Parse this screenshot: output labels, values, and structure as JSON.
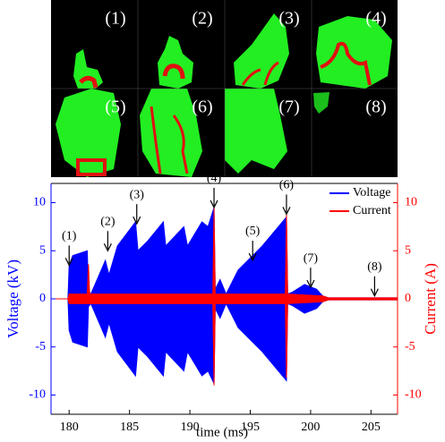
{
  "chart_data": {
    "type": "band",
    "image_panels": {
      "labels": [
        "(1)",
        "(2)",
        "(3)",
        "(4)",
        "(5)",
        "(6)",
        "(7)",
        "(8)"
      ]
    },
    "xlabel": "time (ms)",
    "ylabel": "Voltage (kV)",
    "y2label": "Current (A)",
    "xlim": [
      178.5,
      207.2
    ],
    "xticks": [
      180,
      185,
      190,
      195,
      200,
      205
    ],
    "ylim": [
      -12,
      12
    ],
    "yticks": [
      -10,
      -5,
      0,
      5,
      10
    ],
    "y2lim": [
      -12,
      12
    ],
    "y2ticks": [
      -10,
      -5,
      0,
      5,
      10
    ],
    "legend": "upper-right",
    "series": [
      {
        "name": "Voltage",
        "color": "#0000ff",
        "x": [
          178.5,
          179.9,
          180.0,
          180.3,
          181.5,
          181.6,
          181.8,
          183.0,
          183.3,
          184.0,
          185.5,
          185.7,
          186.5,
          187.8,
          188.0,
          189.5,
          189.8,
          191.0,
          191.5,
          192.0,
          192.1,
          192.5,
          193.0,
          194.0,
          196.0,
          197.0,
          198.0,
          198.1,
          198.5,
          199.5,
          200.5,
          201.0,
          201.5,
          207.2
        ],
        "values": [
          0,
          0,
          3.5,
          4.5,
          5.0,
          0.8,
          0.5,
          4.0,
          2.5,
          5.5,
          8.0,
          5.0,
          6.0,
          8.0,
          5.5,
          7.5,
          5.5,
          8.0,
          7.5,
          9.5,
          1.0,
          2.0,
          0.5,
          3.0,
          5.5,
          7.0,
          8.5,
          0.5,
          0.7,
          1.5,
          1.0,
          0.3,
          0.1,
          0.1
        ],
        "lower": [
          0,
          0,
          -3.3,
          -4.5,
          -5.0,
          -0.8,
          -0.5,
          -4.0,
          -2.5,
          -5.5,
          -8.0,
          -5.0,
          -6.0,
          -8.0,
          -5.5,
          -7.5,
          -5.5,
          -8.0,
          -7.5,
          -8.8,
          -1.0,
          -2.0,
          -0.5,
          -3.0,
          -5.5,
          -7.0,
          -8.5,
          -0.5,
          -0.7,
          -1.5,
          -1.0,
          -0.3,
          -0.1,
          -0.1
        ]
      },
      {
        "name": "Current",
        "color": "#ff0000",
        "axis": "y2",
        "x": [
          178.5,
          179.9,
          180.0,
          181.5,
          181.6,
          181.7,
          191.9,
          192.0,
          192.1,
          197.9,
          198.0,
          198.1,
          201.0,
          201.5,
          207.2
        ],
        "values": [
          0,
          0,
          0.5,
          0.5,
          3.6,
          0.5,
          0.5,
          9.5,
          0.5,
          0.5,
          8.8,
          0.5,
          0.3,
          0.1,
          0.1
        ],
        "lower": [
          0,
          0,
          -0.5,
          -0.5,
          -0.5,
          -0.5,
          -0.5,
          -9,
          -0.5,
          -0.5,
          -8.2,
          -0.5,
          -0.3,
          -0.1,
          -0.1
        ]
      }
    ],
    "annotations": [
      {
        "text": "(1)",
        "x": 180,
        "y": 3.5
      },
      {
        "text": "(2)",
        "x": 183.2,
        "y": 5.0
      },
      {
        "text": "(3)",
        "x": 185.6,
        "y": 7.8
      },
      {
        "text": "(4)",
        "x": 192,
        "y": 9.5
      },
      {
        "text": "(5)",
        "x": 195.2,
        "y": 4.0
      },
      {
        "text": "(6)",
        "x": 198,
        "y": 8.8
      },
      {
        "text": "(7)",
        "x": 200,
        "y": 1.2
      },
      {
        "text": "(8)",
        "x": 205.3,
        "y": 0.3
      }
    ]
  }
}
